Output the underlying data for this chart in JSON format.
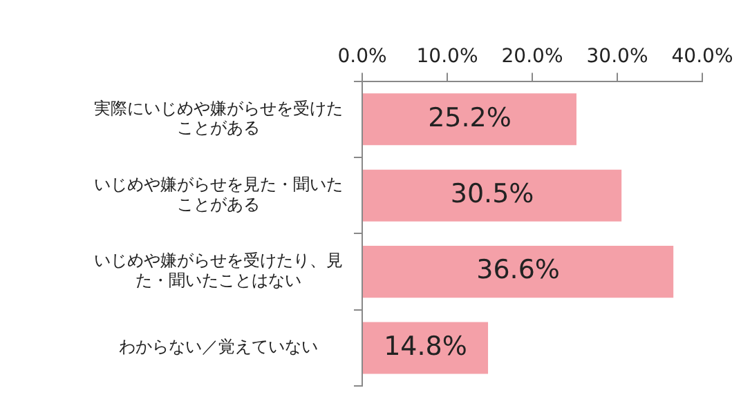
{
  "chart_data": {
    "type": "bar",
    "orientation": "horizontal",
    "categories": [
      "実際にいじめや嫌がらせを受けたことがある",
      "いじめや嫌がらせを見た・聞いたことがある",
      "いじめや嫌がらせを受けたり、見た・聞いたことはない",
      "わからない／覚えていない"
    ],
    "values": [
      25.2,
      30.5,
      36.6,
      14.8
    ],
    "value_labels": [
      "25.2%",
      "30.5%",
      "36.6%",
      "14.8%"
    ],
    "color": "#f4a0a8",
    "xlim": [
      0,
      40
    ],
    "xticks": [
      {
        "value": 0,
        "label": "0.0%"
      },
      {
        "value": 10,
        "label": "10.0%"
      },
      {
        "value": 20,
        "label": "20.0%"
      },
      {
        "value": 30,
        "label": "30.0%"
      },
      {
        "value": 40,
        "label": "40.0%"
      }
    ],
    "grid": false,
    "legend": false
  }
}
